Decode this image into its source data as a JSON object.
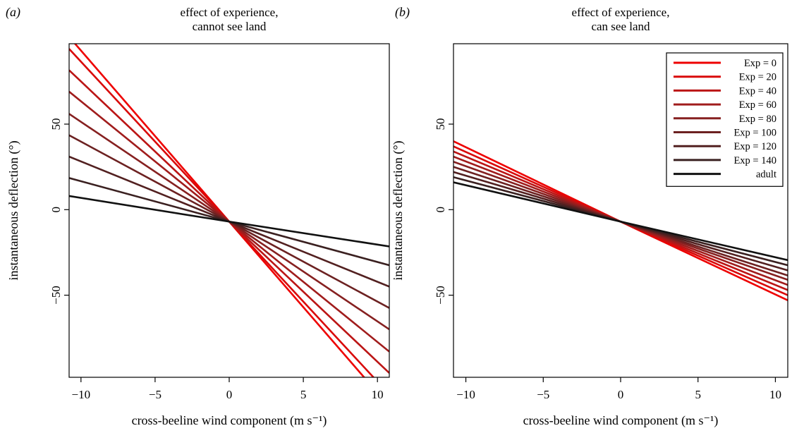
{
  "colors": {
    "series": [
      "#ee0000",
      "#d90a0a",
      "#bb1515",
      "#a01c1c",
      "#862020",
      "#6c2121",
      "#522020",
      "#3a2020",
      "#111111"
    ]
  },
  "chart_data": [
    {
      "type": "line",
      "panel_label": "(a)",
      "title": "effect of experience,\ncannot see land",
      "xlabel": "cross-beeline wind component (m s⁻¹)",
      "ylabel": "instantaneous deflection (°)",
      "xlim": [
        -10.8,
        10.8
      ],
      "ylim": [
        -98,
        97
      ],
      "xticks": [
        -10,
        -5,
        0,
        5,
        10
      ],
      "yticks": [
        -50,
        0,
        50
      ],
      "x_tick_labels": [
        "−10",
        "−5",
        "0",
        "5",
        "10"
      ],
      "y_tick_labels": [
        "−50",
        "0",
        "50"
      ],
      "grid": false,
      "legend": null,
      "series": [
        {
          "name": "Exp = 0",
          "points": [
            [
              -10.8,
              101
            ],
            [
              0,
              -7
            ],
            [
              10.8,
              -115
            ]
          ]
        },
        {
          "name": "Exp = 20",
          "points": [
            [
              -10.8,
              94
            ],
            [
              0,
              -7
            ],
            [
              10.8,
              -108
            ]
          ]
        },
        {
          "name": "Exp = 40",
          "points": [
            [
              -10.8,
              81.5
            ],
            [
              0,
              -7
            ],
            [
              10.8,
              -95.5
            ]
          ]
        },
        {
          "name": "Exp = 60",
          "points": [
            [
              -10.8,
              69
            ],
            [
              0,
              -7
            ],
            [
              10.8,
              -83
            ]
          ]
        },
        {
          "name": "Exp = 80",
          "points": [
            [
              -10.8,
              56
            ],
            [
              0,
              -7
            ],
            [
              10.8,
              -70
            ]
          ]
        },
        {
          "name": "Exp = 100",
          "points": [
            [
              -10.8,
              43.5
            ],
            [
              0,
              -7
            ],
            [
              10.8,
              -57.5
            ]
          ]
        },
        {
          "name": "Exp = 120",
          "points": [
            [
              -10.8,
              31
            ],
            [
              0,
              -7
            ],
            [
              10.8,
              -45
            ]
          ]
        },
        {
          "name": "Exp = 140",
          "points": [
            [
              -10.8,
              18.5
            ],
            [
              0,
              -7
            ],
            [
              10.8,
              -32.5
            ]
          ]
        },
        {
          "name": "adult",
          "points": [
            [
              -10.8,
              8
            ],
            [
              0,
              -7
            ],
            [
              10.8,
              -21.5
            ]
          ]
        }
      ]
    },
    {
      "type": "line",
      "panel_label": "(b)",
      "title": "effect of experience,\ncan see land",
      "xlabel": "cross-beeline wind component (m s⁻¹)",
      "ylabel": "instantaneous deflection (°)",
      "xlim": [
        -10.8,
        10.8
      ],
      "ylim": [
        -98,
        97
      ],
      "xticks": [
        -10,
        -5,
        0,
        5,
        10
      ],
      "yticks": [
        -50,
        0,
        50
      ],
      "x_tick_labels": [
        "−10",
        "−5",
        "0",
        "5",
        "10"
      ],
      "y_tick_labels": [
        "−50",
        "0",
        "50"
      ],
      "grid": false,
      "legend": "top-right",
      "series": [
        {
          "name": "Exp = 0",
          "points": [
            [
              -10.8,
              40
            ],
            [
              0,
              -7
            ],
            [
              10.8,
              -53
            ]
          ]
        },
        {
          "name": "Exp = 20",
          "points": [
            [
              -10.8,
              37
            ],
            [
              0,
              -7
            ],
            [
              10.8,
              -50
            ]
          ]
        },
        {
          "name": "Exp = 40",
          "points": [
            [
              -10.8,
              34
            ],
            [
              0,
              -7
            ],
            [
              10.8,
              -47
            ]
          ]
        },
        {
          "name": "Exp = 60",
          "points": [
            [
              -10.8,
              31
            ],
            [
              0,
              -7
            ],
            [
              10.8,
              -44
            ]
          ]
        },
        {
          "name": "Exp = 80",
          "points": [
            [
              -10.8,
              28
            ],
            [
              0,
              -7
            ],
            [
              10.8,
              -41
            ]
          ]
        },
        {
          "name": "Exp = 100",
          "points": [
            [
              -10.8,
              25
            ],
            [
              0,
              -7
            ],
            [
              10.8,
              -38.5
            ]
          ]
        },
        {
          "name": "Exp = 120",
          "points": [
            [
              -10.8,
              22
            ],
            [
              0,
              -7
            ],
            [
              10.8,
              -35.5
            ]
          ]
        },
        {
          "name": "Exp = 140",
          "points": [
            [
              -10.8,
              19
            ],
            [
              0,
              -7
            ],
            [
              10.8,
              -32.5
            ]
          ]
        },
        {
          "name": "adult",
          "points": [
            [
              -10.8,
              16
            ],
            [
              0,
              -7
            ],
            [
              10.8,
              -29.5
            ]
          ]
        }
      ]
    }
  ]
}
